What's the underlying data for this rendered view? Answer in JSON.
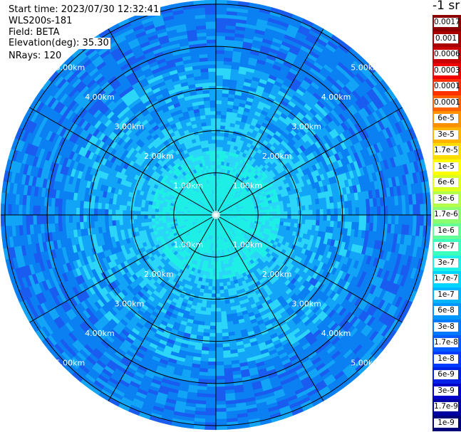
{
  "header": {
    "start_time": "Start time: 2023/07/30 12:32:41",
    "instrument": "WLS200s-181",
    "field": "Field: BETA",
    "elevation": "Elevation(deg): 35.30",
    "nrays": "NRays: 120"
  },
  "chart_data": {
    "type": "heatmap",
    "projection": "polar-ppi",
    "range_rings_km": [
      1,
      2,
      3,
      4,
      5
    ],
    "range_labels": [
      "1.00km",
      "2.00km",
      "3.00km",
      "4.00km",
      "5.00km"
    ],
    "spokes_deg": [
      0,
      30,
      60,
      90,
      120,
      150,
      180,
      210,
      240,
      270,
      300,
      330
    ],
    "nrays": 120,
    "field": "BETA",
    "colorbar": {
      "unit_label": "-1 sr",
      "ticks": [
        "0.0017",
        "0.001",
        "0.0006",
        "0.0003",
        "0.00017",
        "0.0001",
        "6e-5",
        "3e-5",
        "1.7e-5",
        "1e-5",
        "6e-6",
        "3e-6",
        "1.7e-6",
        "1e-6",
        "6e-7",
        "3e-7",
        "1.7e-7",
        "1e-7",
        "6e-8",
        "3e-8",
        "1.7e-8",
        "1e-8",
        "6e-9",
        "3e-9",
        "1.7e-9",
        "1e-9"
      ],
      "colors": [
        "#8b0000",
        "#a80000",
        "#c80000",
        "#f00000",
        "#ff3000",
        "#ff6000",
        "#ff9000",
        "#ffb400",
        "#ffdc00",
        "#ffff00",
        "#dcff20",
        "#b4ff4a",
        "#8cff70",
        "#64ff96",
        "#3cffbe",
        "#1ef0e6",
        "#00d4ff",
        "#00b4ff",
        "#0096ff",
        "#0078ff",
        "#005aff",
        "#003cff",
        "#0020e6",
        "#0000c8",
        "#0000a0",
        "#000078"
      ]
    },
    "data_colors": {
      "near_core": "#1ef0e6",
      "inner": "#2cd6f8",
      "mid": "#12a4f6",
      "outer": "#0a80f2",
      "speckle": "#1a5cf0"
    }
  }
}
